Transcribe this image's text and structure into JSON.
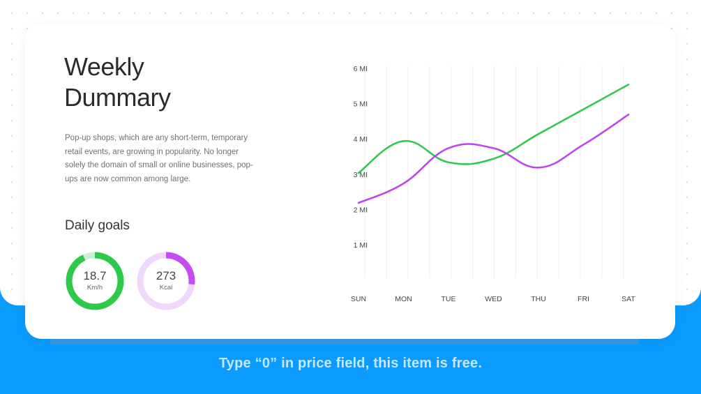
{
  "card": {
    "title_line1": "Weekly",
    "title_line2": "Dummary",
    "description": "Pop-up shops, which are any short-term, temporary retail events, are growing in popularity. No longer solely the domain of small or online businesses, pop-ups are now common among large.",
    "goals_title": "Daily goals"
  },
  "goals": [
    {
      "value": "18.7",
      "unit": "Km/h",
      "progress": 0.93,
      "color": "#2ec84a",
      "track": "#cdeed4"
    },
    {
      "value": "273",
      "unit": "Kcal",
      "progress": 0.27,
      "color": "#c54cf3",
      "track": "#f0d7fb"
    }
  ],
  "chart_data": {
    "type": "line",
    "categories": [
      "SUN",
      "MON",
      "TUE",
      "WED",
      "THU",
      "FRI",
      "SAT"
    ],
    "y_ticks": [
      1,
      2,
      3,
      4,
      5,
      6
    ],
    "y_tick_labels": [
      "1 MI",
      "2 MI",
      "3 MI",
      "4 MI",
      "5 MI",
      "6 MI"
    ],
    "ylim": [
      0,
      6
    ],
    "grid": "vertical",
    "series": [
      {
        "color": "#33c750",
        "values": [
          3.1,
          4.0,
          3.4,
          3.5,
          4.2,
          4.9,
          5.6
        ]
      },
      {
        "color": "#c145ee",
        "values": [
          2.25,
          2.8,
          3.8,
          3.8,
          3.25,
          3.9,
          4.75
        ]
      }
    ]
  },
  "footer": {
    "text": "Type “0” in price field, this item is free."
  }
}
